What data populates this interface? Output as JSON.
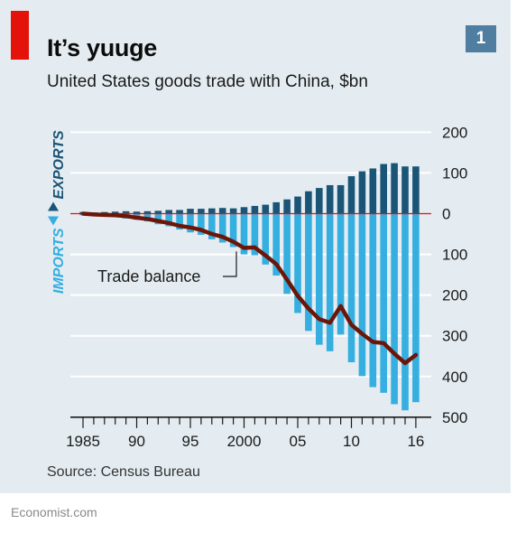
{
  "header": {
    "title": "It’s yuuge",
    "subtitle": "United States goods trade with China, $bn",
    "badge": "1"
  },
  "footer": {
    "source": "Source: Census Bureau",
    "credit": "Economist.com"
  },
  "colors": {
    "exports": "#1a5577",
    "imports": "#35aee0",
    "balance": "#6b1608",
    "zero_line": "#e3120b",
    "panel": "#e4ecf1",
    "brand_red": "#e3120b",
    "badge": "#4f7ea0"
  },
  "chart_data": {
    "type": "bar",
    "title": "It’s yuuge",
    "subtitle": "United States goods trade with China, $bn",
    "x": [
      1985,
      1986,
      1987,
      1988,
      1989,
      1990,
      1991,
      1992,
      1993,
      1994,
      1995,
      1996,
      1997,
      1998,
      1999,
      2000,
      2001,
      2002,
      2003,
      2004,
      2005,
      2006,
      2007,
      2008,
      2009,
      2010,
      2011,
      2012,
      2013,
      2014,
      2015,
      2016
    ],
    "x_tick_labels": [
      {
        "year": 1985,
        "label": "1985"
      },
      {
        "year": 1990,
        "label": "90"
      },
      {
        "year": 1995,
        "label": "95"
      },
      {
        "year": 2000,
        "label": "2000"
      },
      {
        "year": 2005,
        "label": "05"
      },
      {
        "year": 2010,
        "label": "10"
      },
      {
        "year": 2016,
        "label": "16"
      }
    ],
    "y_ticks": [
      {
        "value": 200,
        "label": "200"
      },
      {
        "value": 100,
        "label": "100"
      },
      {
        "value": 0,
        "label": "0"
      },
      {
        "value": -100,
        "label": "100"
      },
      {
        "value": -200,
        "label": "200"
      },
      {
        "value": -300,
        "label": "300"
      },
      {
        "value": -400,
        "label": "400"
      },
      {
        "value": -500,
        "label": "500"
      }
    ],
    "ylim": [
      -500,
      200
    ],
    "grid": true,
    "axis_side_label": {
      "exports": "EXPORTS",
      "imports": "IMPORTS"
    },
    "series": [
      {
        "name": "EXPORTS",
        "kind": "bar",
        "values": [
          4,
          3,
          4,
          5,
          6,
          5,
          6,
          7,
          9,
          9,
          12,
          12,
          13,
          14,
          13,
          16,
          19,
          22,
          28,
          35,
          42,
          55,
          63,
          70,
          70,
          92,
          104,
          111,
          122,
          124,
          116,
          116
        ]
      },
      {
        "name": "IMPORTS",
        "kind": "bar",
        "values": [
          -4,
          -5,
          -6,
          -8,
          -12,
          -15,
          -19,
          -26,
          -31,
          -39,
          -46,
          -52,
          -63,
          -71,
          -82,
          -100,
          -102,
          -125,
          -152,
          -197,
          -244,
          -288,
          -322,
          -338,
          -297,
          -365,
          -399,
          -426,
          -440,
          -468,
          -483,
          -463
        ]
      },
      {
        "name": "Trade balance",
        "kind": "line",
        "values": [
          0,
          -2,
          -3,
          -4,
          -6,
          -10,
          -13,
          -18,
          -23,
          -30,
          -34,
          -40,
          -50,
          -57,
          -69,
          -84,
          -83,
          -103,
          -124,
          -162,
          -202,
          -233,
          -259,
          -268,
          -227,
          -273,
          -295,
          -315,
          -318,
          -344,
          -367,
          -347
        ]
      }
    ]
  }
}
